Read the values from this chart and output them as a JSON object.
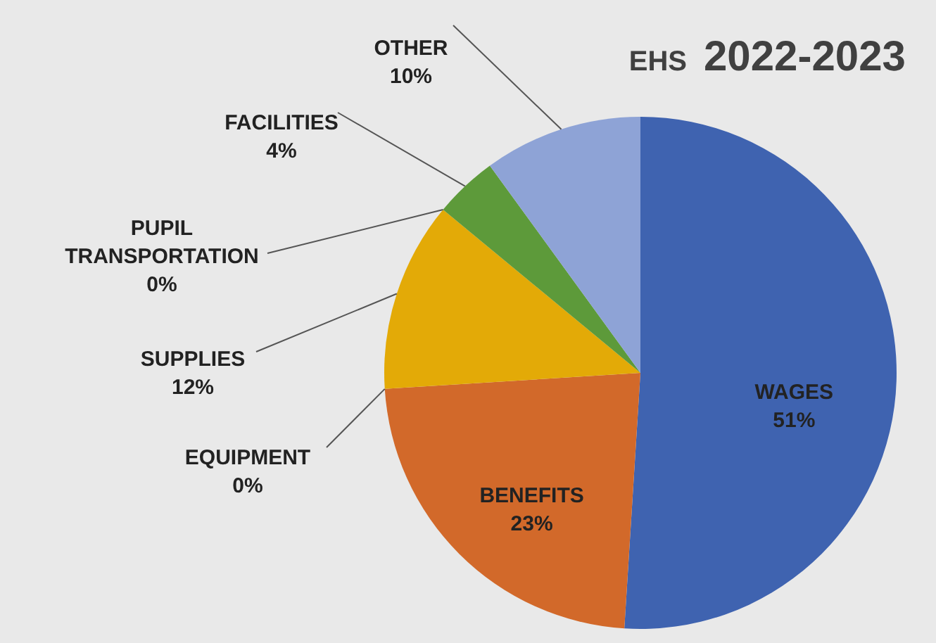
{
  "chart_data": {
    "type": "pie",
    "title": "EHS 2022-2023",
    "categories": [
      "WAGES",
      "BENEFITS",
      "EQUIPMENT",
      "SUPPLIES",
      "PUPIL TRANSPORTATION",
      "FACILITIES",
      "OTHER"
    ],
    "values": [
      51,
      23,
      0,
      12,
      0,
      4,
      10
    ],
    "colors": [
      "#3f63b0",
      "#d2692a",
      "#a5a5a5",
      "#e3aa07",
      "#7f7f7f",
      "#5d9a3a",
      "#8ea3d6"
    ],
    "value_labels": [
      "51%",
      "23%",
      "0%",
      "12%",
      "0%",
      "4%",
      "10%"
    ]
  }
}
